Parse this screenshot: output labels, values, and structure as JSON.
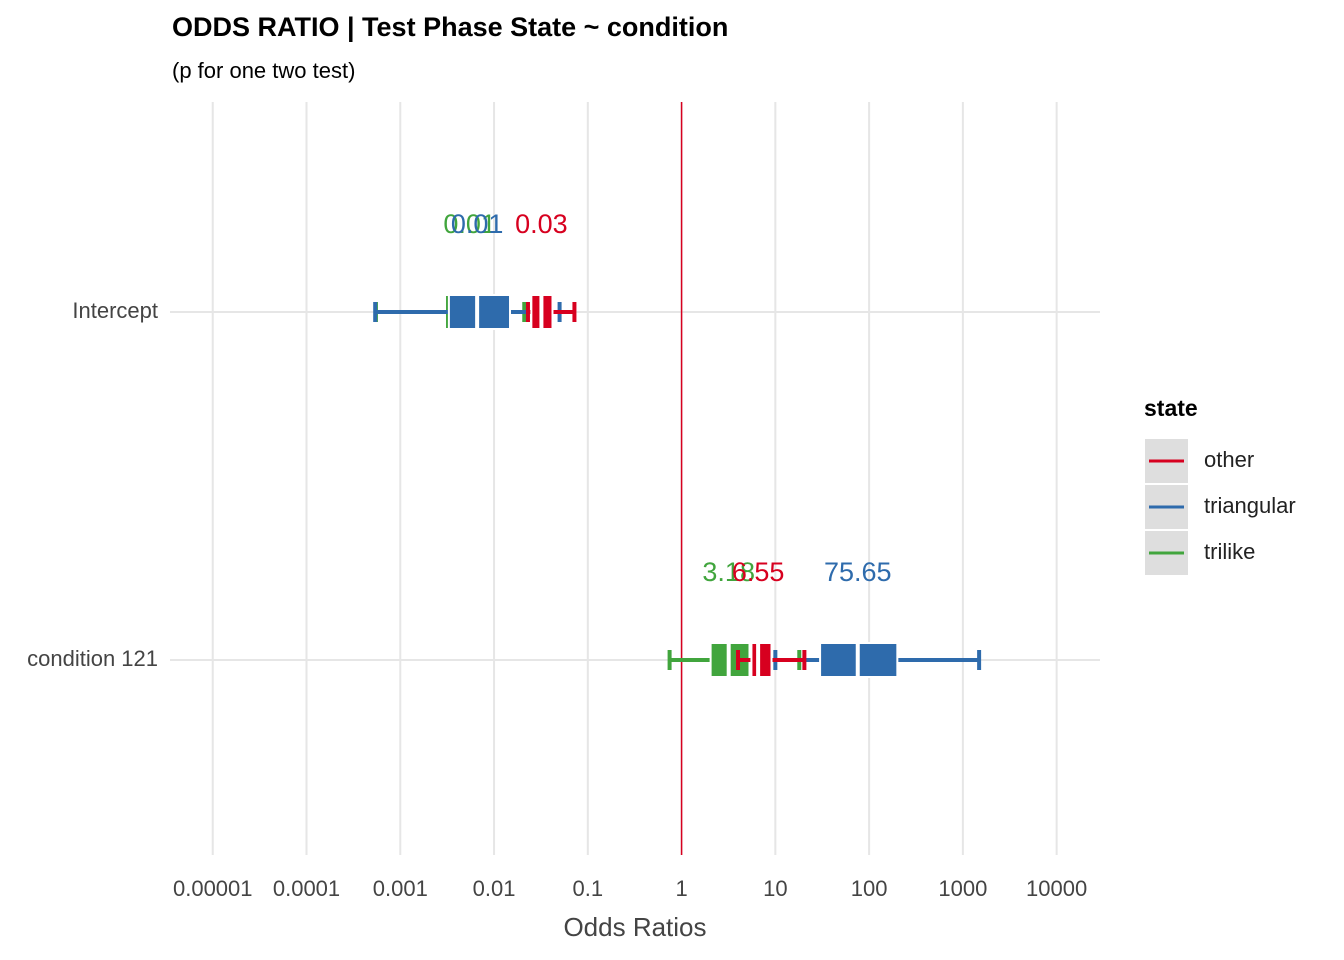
{
  "chart_data": {
    "type": "forest",
    "title": "ODDS RATIO | Test Phase State ~ condition",
    "subtitle": "(p for one two test)",
    "x_label": "Odds Ratios",
    "categories": [
      "Intercept",
      "condition 121"
    ],
    "xlog": true,
    "xlim": [
      3.5e-06,
      29000
    ],
    "xticks": [
      1e-05,
      0.0001,
      0.001,
      0.01,
      0.1,
      1,
      10,
      100,
      1000,
      10000
    ],
    "grid": true,
    "reference_line": 1,
    "reference_color": "#d7001f",
    "legend_title": "state",
    "legend_position": "right",
    "series": [
      {
        "name": "other",
        "color": "#d7001f",
        "values": [
          0.032,
          6.55
        ],
        "value_labels": [
          "0.03",
          "6.55"
        ],
        "box_low": [
          0.025,
          5.56
        ],
        "box_high": [
          0.042,
          9.1
        ],
        "ci_low": [
          0.023,
          4
        ],
        "ci_high": [
          0.072,
          20.4
        ]
      },
      {
        "name": "triangular",
        "color": "#2e6bac",
        "values": [
          0.0066,
          75.65
        ],
        "value_labels": [
          "0.01",
          "75.65"
        ],
        "box_low": [
          0.0033,
          30
        ],
        "box_high": [
          0.0148,
          200
        ],
        "ci_low": [
          0.00054,
          10
        ],
        "ci_high": [
          0.05,
          1490
        ]
      },
      {
        "name": "trilike",
        "color": "#41a53d",
        "values": [
          0.0055,
          3.18
        ],
        "value_labels": [
          "0.01",
          "3.18"
        ],
        "box_low": [
          0.003,
          2.04
        ],
        "box_high": [
          0.012,
          5.3
        ],
        "ci_low": [
          0.00055,
          0.745
        ],
        "ci_high": [
          0.021,
          18
        ]
      }
    ]
  }
}
